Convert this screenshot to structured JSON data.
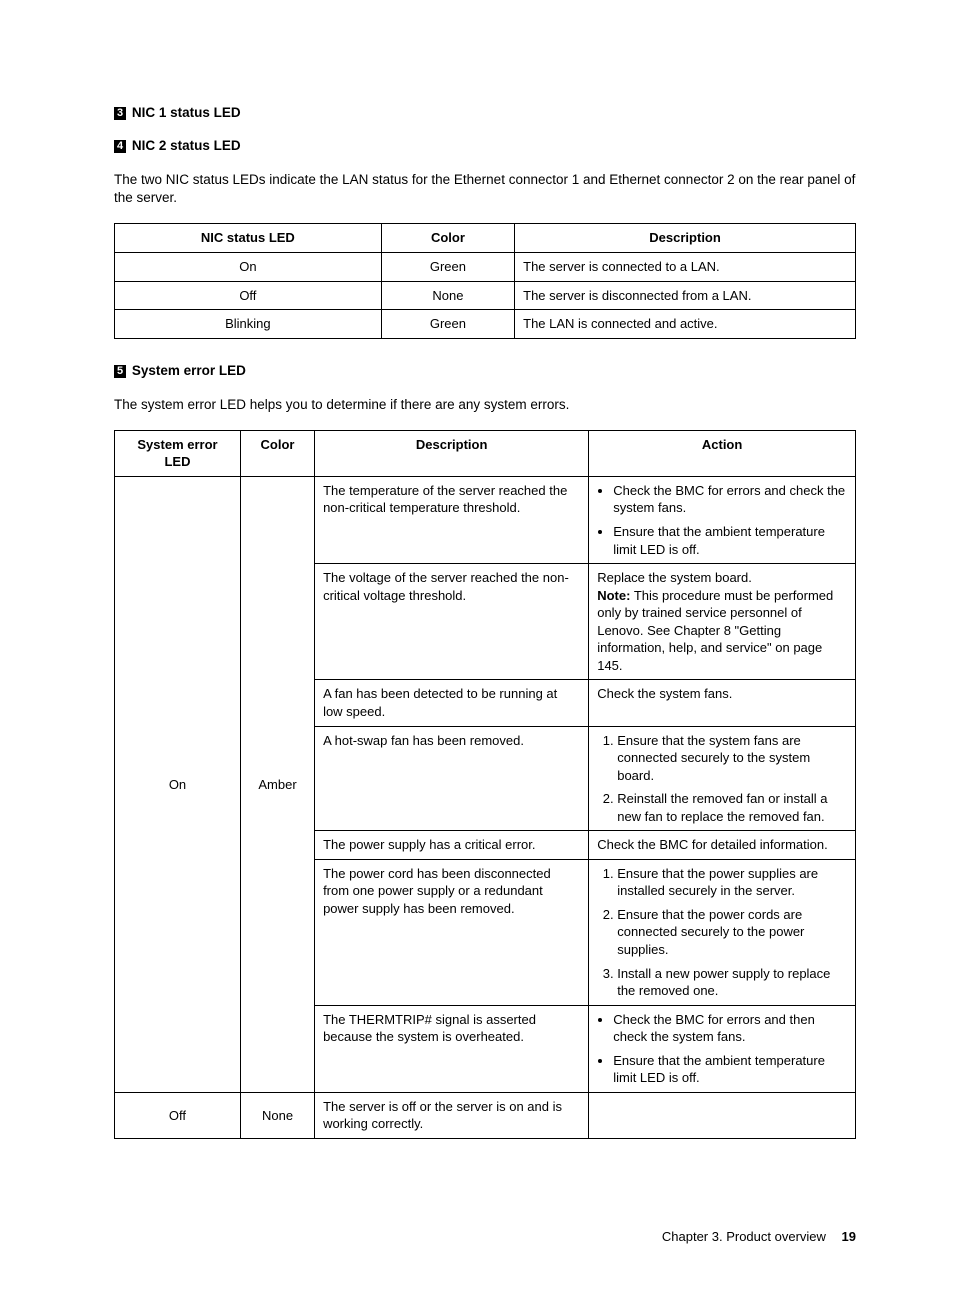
{
  "headings": {
    "h3_num": "3",
    "h3_text": "NIC 1 status LED",
    "h4_num": "4",
    "h4_text": "NIC 2 status LED",
    "h5_num": "5",
    "h5_text": "System error LED"
  },
  "paras": {
    "nic_intro": "The two NIC status LEDs indicate the LAN status for the Ethernet connector 1 and Ethernet connector 2 on the rear panel of the server.",
    "syserr_intro": "The system error LED helps you to determine if there are any system errors."
  },
  "nic_table": {
    "headers": [
      "NIC status LED",
      "Color",
      "Description"
    ],
    "rows": [
      [
        "On",
        "Green",
        "The server is connected to a LAN."
      ],
      [
        "Off",
        "None",
        "The server is disconnected from a LAN."
      ],
      [
        "Blinking",
        "Green",
        "The LAN is connected and active."
      ]
    ]
  },
  "syserr_table": {
    "headers": [
      "System error LED",
      "Color",
      "Description",
      "Action"
    ],
    "on_state": "On",
    "on_color": "Amber",
    "off_state": "Off",
    "off_color": "None",
    "off_desc": "The server is off or the server is on and is working correctly.",
    "off_action": "",
    "on_rows": {
      "r1_desc": "The temperature of the server reached the non-critical temperature threshold.",
      "r1_b1": "Check the BMC for errors and check the system fans.",
      "r1_b2": "Ensure that the ambient temperature limit LED is off.",
      "r2_desc": "The voltage of the server reached the non-critical voltage threshold.",
      "r2_act_line1": "Replace the system board.",
      "r2_act_note_label": "Note:",
      "r2_act_note_body": " This procedure must be performed only by trained service personnel of Lenovo. See Chapter 8 \"Getting information, help, and service\" on page 145.",
      "r3_desc": "A fan has been detected to be running at low speed.",
      "r3_act": "Check the system fans.",
      "r4_desc": "A hot-swap fan has been removed.",
      "r4_n1": "Ensure that the system fans are connected securely to the system board.",
      "r4_n2": "Reinstall the removed fan or install a new fan to replace the removed fan.",
      "r5_desc": "The power supply has a critical error.",
      "r5_act": "Check the BMC for detailed information.",
      "r6_desc": "The power cord has been disconnected from one power supply or a redundant power supply has been removed.",
      "r6_n1": "Ensure that the power supplies are installed securely in the server.",
      "r6_n2": "Ensure that the power cords are connected securely to the power supplies.",
      "r6_n3": "Install a new power supply to replace the removed one.",
      "r7_desc": "The THERMTRIP# signal is asserted because the system is overheated.",
      "r7_b1": "Check the BMC for errors and then check the system fans.",
      "r7_b2": "Ensure that the ambient temperature limit LED is off."
    }
  },
  "footer": {
    "chapter": "Chapter 3. Product overview",
    "page": "19"
  }
}
